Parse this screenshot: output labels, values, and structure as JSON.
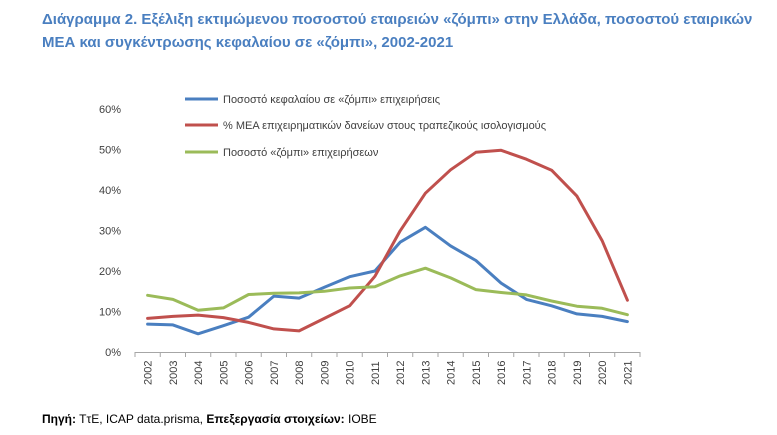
{
  "title": "Διάγραμμα 2. Εξέλιξη εκτιμώμενου ποσοστού εταιρειών «ζόμπι» στην Ελλάδα, ποσοστού εταιρικών ΜΕΑ και συγκέντρωσης κεφαλαίου σε «ζόμπι», 2002-2021",
  "source": {
    "label1": "Πηγή:",
    "text1": " ΤτΕ, ICAP data.prisma, ",
    "label2": "Επεξεργασία στοιχείων:",
    "text2": " ΙΟΒΕ"
  },
  "colors": {
    "title": "#4a7fc0",
    "blue": "#4a7fc0",
    "red": "#c0504d",
    "green": "#9bbb59"
  },
  "chart_data": {
    "type": "line",
    "x": [
      "2002",
      "2003",
      "2004",
      "2005",
      "2006",
      "2007",
      "2008",
      "2009",
      "2010",
      "2011",
      "2012",
      "2013",
      "2014",
      "2015",
      "2016",
      "2017",
      "2018",
      "2019",
      "2020",
      "2021"
    ],
    "ylim": [
      0,
      60
    ],
    "yticks": [
      "0%",
      "10%",
      "20%",
      "30%",
      "40%",
      "50%",
      "60%"
    ],
    "legend_position": "top",
    "series": [
      {
        "name": "Ποσοστό κεφαλαίου σε «ζόμπι» επιχειρήσεις",
        "color": "#4a7fc0",
        "values": [
          6.9,
          6.7,
          4.5,
          6.5,
          8.6,
          13.8,
          13.3,
          16.0,
          18.6,
          20.0,
          27.1,
          30.8,
          26.2,
          22.6,
          17.0,
          13.0,
          11.4,
          9.4,
          8.8,
          7.5
        ]
      },
      {
        "name": "% ΜΕΑ επιχειρηματικών δανείων στους τραπεζικούς ισολογισμούς",
        "color": "#c0504d",
        "values": [
          8.3,
          8.8,
          9.1,
          8.5,
          7.3,
          5.7,
          5.2,
          8.3,
          11.4,
          18.7,
          29.9,
          39.2,
          45.0,
          49.3,
          49.8,
          47.6,
          44.9,
          38.5,
          27.5,
          12.8
        ]
      },
      {
        "name": "Ποσοστό «ζόμπι» επιχειρήσεων",
        "color": "#9bbb59",
        "values": [
          14.0,
          13.0,
          10.3,
          10.9,
          14.2,
          14.5,
          14.6,
          15.0,
          15.8,
          16.1,
          18.8,
          20.7,
          18.3,
          15.4,
          14.7,
          14.1,
          12.6,
          11.3,
          10.8,
          9.2
        ]
      }
    ]
  }
}
